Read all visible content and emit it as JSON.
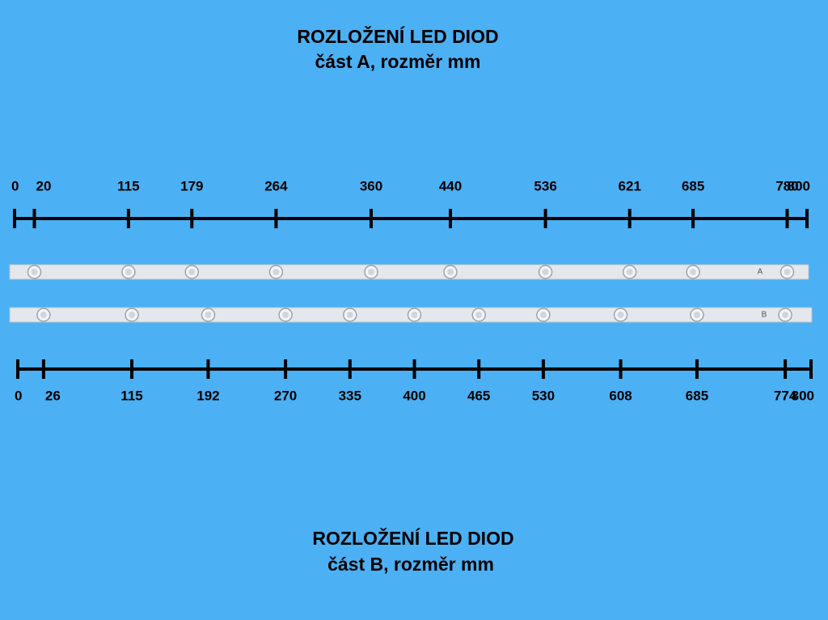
{
  "part_a": {
    "title": "ROZLOŽENÍ LED DIOD",
    "subtitle": "část A, rozměr mm",
    "strip_label": "A",
    "ticks": [
      0,
      20,
      115,
      179,
      264,
      360,
      440,
      536,
      621,
      685,
      780,
      800
    ]
  },
  "part_b": {
    "title": "ROZLOŽENÍ LED DIOD",
    "subtitle": "část B, rozměr mm",
    "strip_label": "B",
    "ticks": [
      0,
      26,
      115,
      192,
      270,
      335,
      400,
      465,
      530,
      608,
      685,
      774,
      800
    ]
  }
}
